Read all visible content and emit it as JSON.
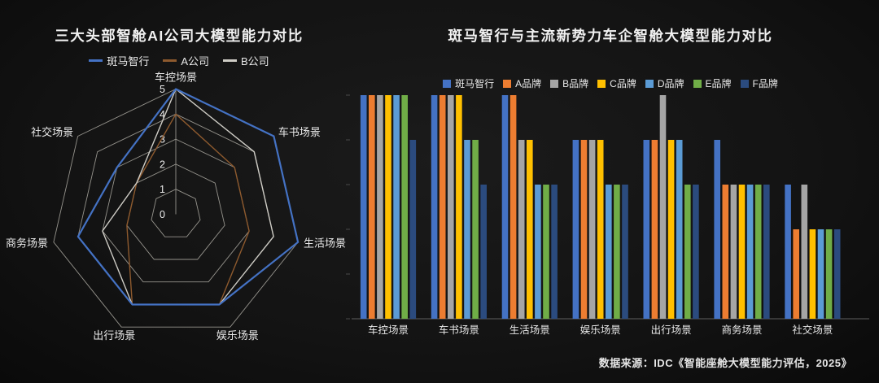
{
  "page": {
    "background": "#131313"
  },
  "footer": {
    "source": "数据来源：IDC《智能座舱大模型能力评估，2025》"
  },
  "chart_data": [
    {
      "type": "radar",
      "title": "三大头部智舱AI公司大模型能力对比",
      "axes": [
        "车控场景",
        "车书场景",
        "生活场景",
        "娱乐场景",
        "出行场景",
        "商务场景",
        "社交场景"
      ],
      "ring_labels": [
        "0",
        "1",
        "2",
        "3",
        "4",
        "5"
      ],
      "range": [
        0,
        5
      ],
      "grid": true,
      "legend_position": "top",
      "series": [
        {
          "name": "斑马智行",
          "color": "#4472C4",
          "values": [
            5,
            5,
            5,
            4,
            4,
            4,
            3
          ]
        },
        {
          "name": "A公司",
          "color": "#8E5A2E",
          "values": [
            4,
            3,
            3,
            4,
            4,
            2,
            2
          ]
        },
        {
          "name": "B公司",
          "color": "#CFCDC6",
          "values": [
            5,
            4,
            4,
            4,
            4,
            3,
            2
          ]
        }
      ]
    },
    {
      "type": "bar",
      "title": "斑马智行与主流新势力车企智舱大模型能力对比",
      "categories": [
        "车控场景",
        "车书场景",
        "生活场景",
        "娱乐场景",
        "出行场景",
        "商务场景",
        "社交场景"
      ],
      "ylim": [
        0,
        5
      ],
      "grid": false,
      "legend_position": "top",
      "series": [
        {
          "name": "斑马智行",
          "color": "#4472C4",
          "values": [
            5,
            5,
            5,
            4,
            4,
            4,
            3
          ]
        },
        {
          "name": "A品牌",
          "color": "#ED7D31",
          "values": [
            5,
            5,
            5,
            4,
            4,
            3,
            2
          ]
        },
        {
          "name": "B品牌",
          "color": "#A5A5A5",
          "values": [
            5,
            5,
            4,
            4,
            5,
            3,
            3
          ]
        },
        {
          "name": "C品牌",
          "color": "#FFC000",
          "values": [
            5,
            5,
            4,
            4,
            4,
            3,
            2
          ]
        },
        {
          "name": "D品牌",
          "color": "#5B9BD5",
          "values": [
            5,
            4,
            3,
            3,
            4,
            3,
            2
          ]
        },
        {
          "name": "E品牌",
          "color": "#70AD47",
          "values": [
            5,
            4,
            3,
            3,
            3,
            3,
            2
          ]
        },
        {
          "name": "F品牌",
          "color": "#2B4B7E",
          "values": [
            4,
            3,
            3,
            3,
            3,
            3,
            2
          ]
        }
      ]
    }
  ]
}
